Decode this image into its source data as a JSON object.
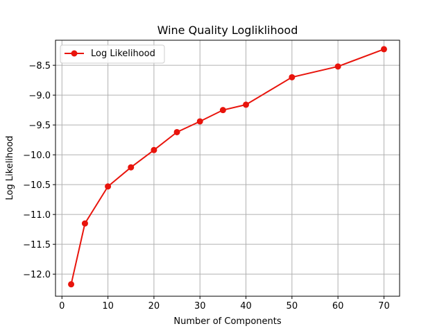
{
  "chart_data": {
    "type": "line",
    "title": "Wine Quality Logliklihood",
    "xlabel": "Number of Components",
    "ylabel": "Log Likelihood",
    "xlim": [
      -1.4,
      73.4
    ],
    "ylim": [
      -12.37,
      -8.08
    ],
    "xticks": [
      0,
      10,
      20,
      30,
      40,
      50,
      60,
      70
    ],
    "yticks": [
      -12.0,
      -11.5,
      -11.0,
      -10.5,
      -10.0,
      -9.5,
      -9.0,
      -8.5
    ],
    "xtick_labels": [
      "0",
      "10",
      "20",
      "30",
      "40",
      "50",
      "60",
      "70"
    ],
    "ytick_labels": [
      "−12.0",
      "−11.5",
      "−11.0",
      "−10.5",
      "−10.0",
      "−9.5",
      "−9.0",
      "−8.5"
    ],
    "grid": true,
    "legend_position": "upper-left",
    "series": [
      {
        "name": "Log Likelihood",
        "color": "#e8140c",
        "marker": "circle",
        "x": [
          2,
          5,
          10,
          15,
          20,
          25,
          30,
          35,
          40,
          50,
          60,
          70
        ],
        "y": [
          -12.17,
          -11.15,
          -10.53,
          -10.21,
          -9.92,
          -9.62,
          -9.44,
          -9.25,
          -9.16,
          -8.7,
          -8.52,
          -8.23
        ]
      }
    ]
  }
}
